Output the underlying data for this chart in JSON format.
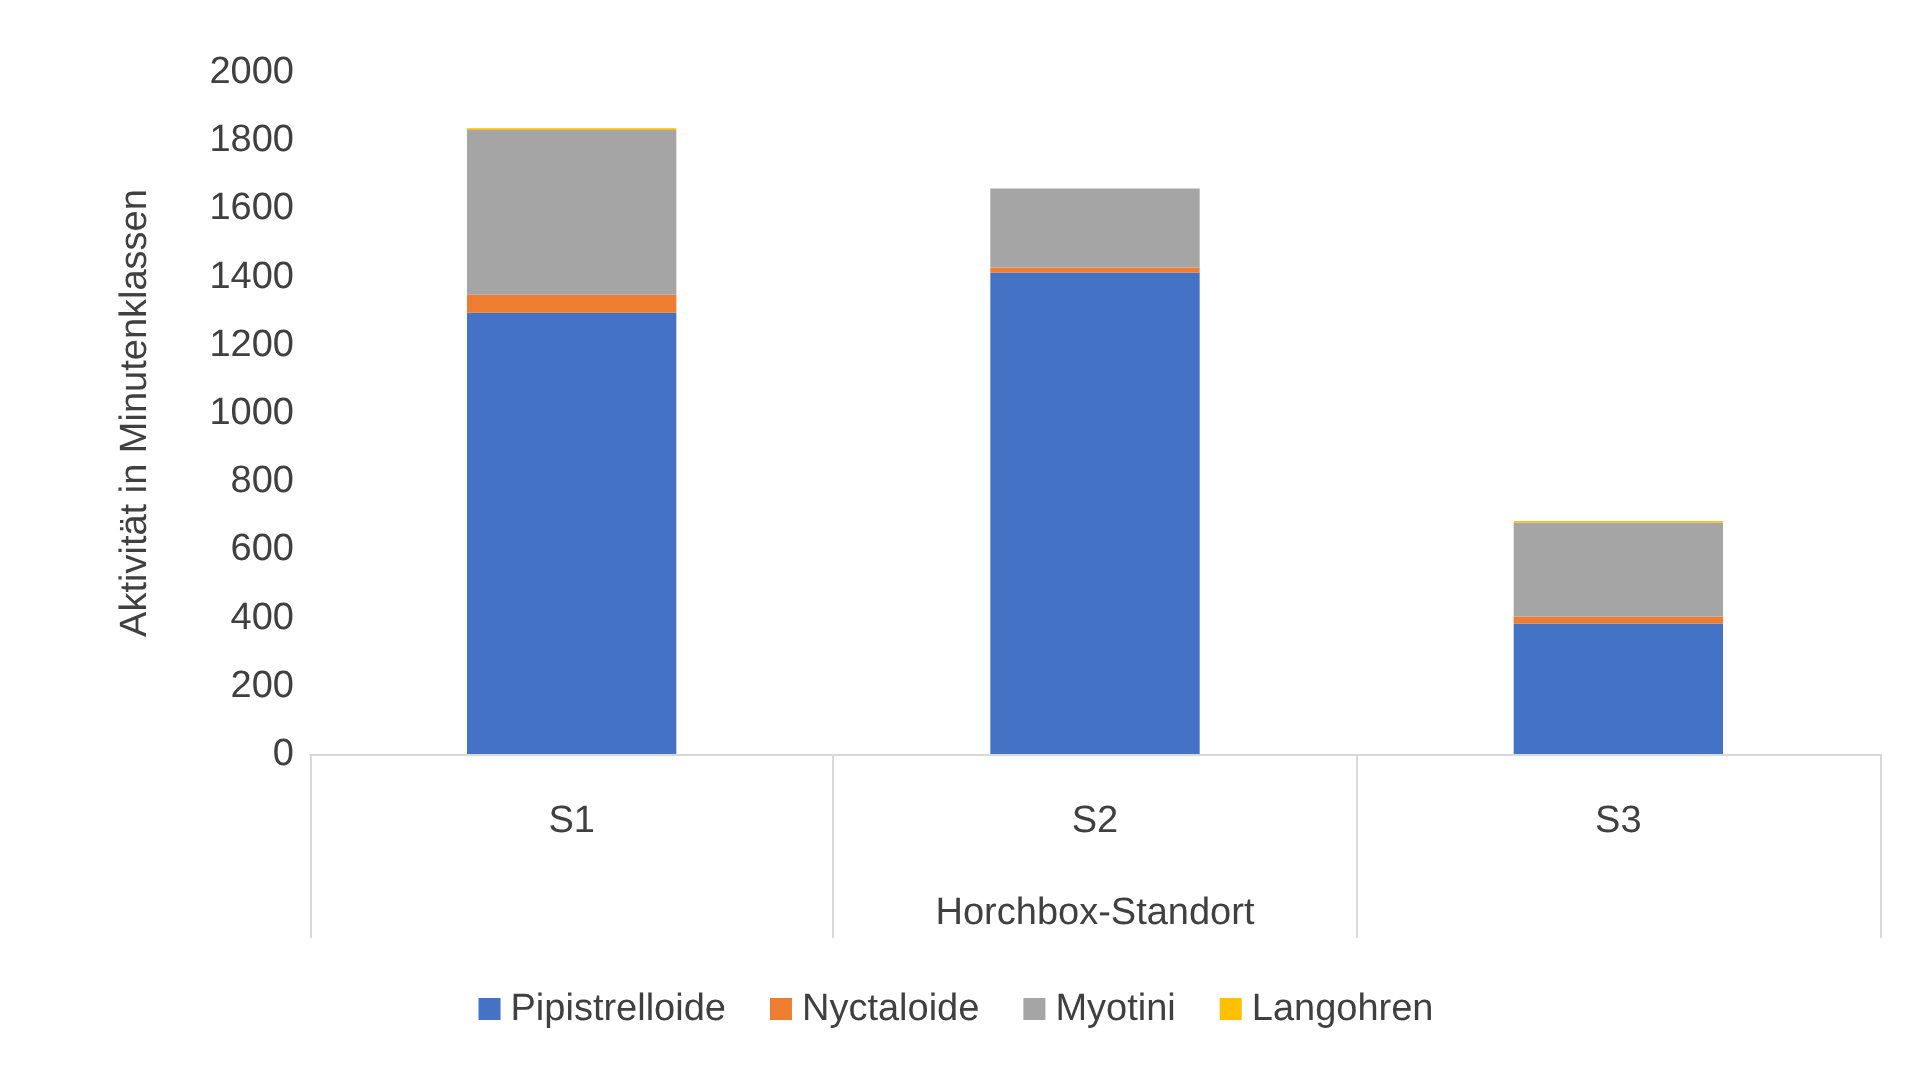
{
  "chart_data": {
    "type": "bar",
    "stacked": true,
    "xlabel": "Horchbox-Standort",
    "ylabel": "Aktivität in Minutenklassen",
    "categories": [
      "S1",
      "S2",
      "S3"
    ],
    "series": [
      {
        "name": "Pipistrelloide",
        "color": "#4472c4",
        "values": [
          1294,
          1412,
          383
        ]
      },
      {
        "name": "Nyctaloide",
        "color": "#ed7d31",
        "values": [
          53,
          15,
          20
        ]
      },
      {
        "name": "Myotini",
        "color": "#a5a5a5",
        "values": [
          483,
          231,
          276
        ]
      },
      {
        "name": "Langohren",
        "color": "#ffc000",
        "values": [
          5,
          0,
          4
        ]
      }
    ],
    "ylim": [
      0,
      2000
    ],
    "yticks": [
      0,
      200,
      400,
      600,
      800,
      1000,
      1200,
      1400,
      1600,
      1800,
      2000
    ],
    "grid": false,
    "legend": "bottom"
  }
}
